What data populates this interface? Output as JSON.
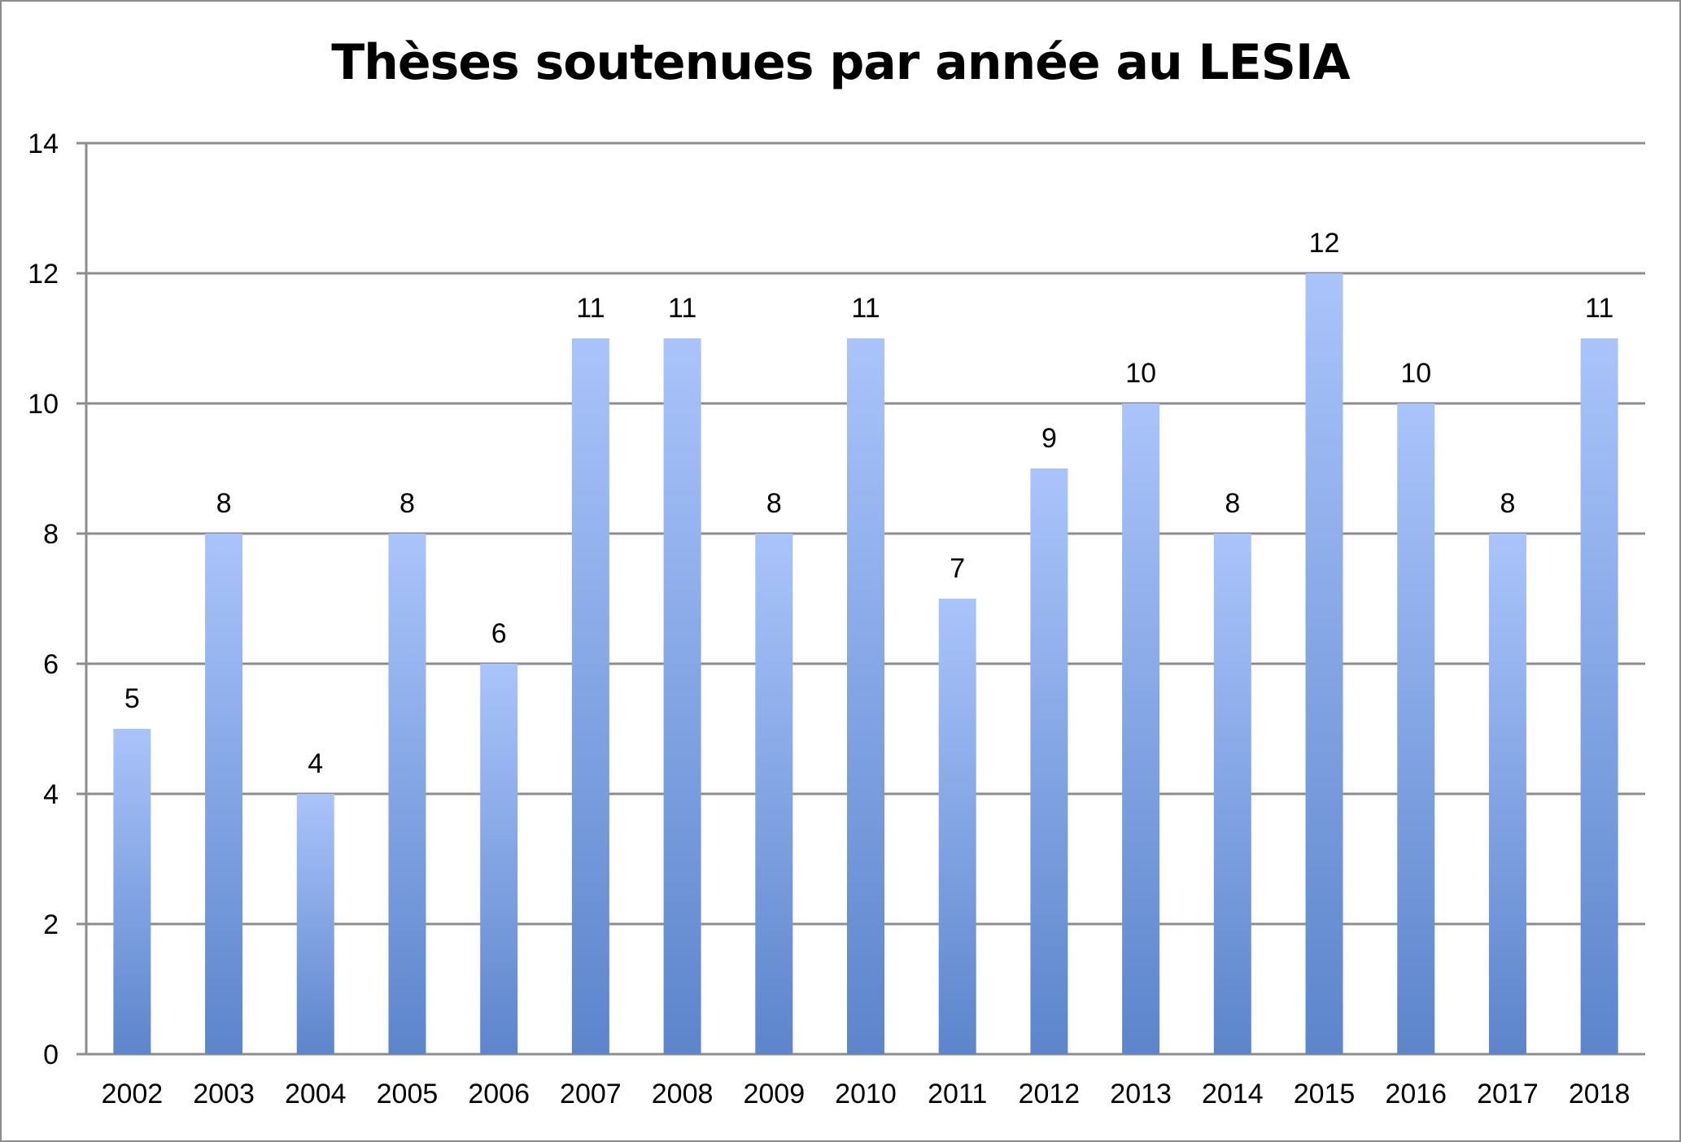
{
  "chart_data": {
    "type": "bar",
    "title": "Thèses soutenues par année au LESIA",
    "xlabel": "",
    "ylabel": "",
    "categories": [
      "2002",
      "2003",
      "2004",
      "2005",
      "2006",
      "2007",
      "2008",
      "2009",
      "2010",
      "2011",
      "2012",
      "2013",
      "2014",
      "2015",
      "2016",
      "2017",
      "2018"
    ],
    "values": [
      5,
      8,
      4,
      8,
      6,
      11,
      11,
      8,
      11,
      7,
      9,
      10,
      8,
      12,
      10,
      8,
      11
    ],
    "ylim": [
      0,
      14
    ],
    "yticks": [
      "0",
      "2",
      "4",
      "6",
      "8",
      "10",
      "12",
      "14"
    ],
    "grid": true,
    "legend": "none",
    "colors": {
      "bar_top": "#aac4fb",
      "bar_bottom": "#5c85cc",
      "grid": "#8c8c8c"
    }
  }
}
